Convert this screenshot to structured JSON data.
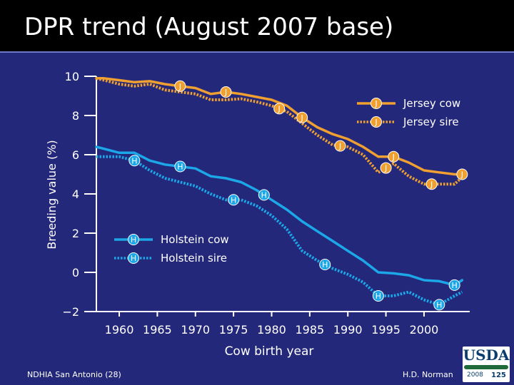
{
  "header": {
    "title": "DPR trend (August 2007 base)"
  },
  "chart_data": {
    "type": "line",
    "title": "DPR trend (August 2007 base)",
    "xlabel": "Cow birth year",
    "ylabel": "Breeding value (%)",
    "xlim": [
      1957,
      2006
    ],
    "ylim": [
      -2,
      10
    ],
    "xticks": [
      1960,
      1965,
      1970,
      1975,
      1980,
      1985,
      1990,
      1995,
      2000
    ],
    "yticks": [
      -2,
      0,
      2,
      4,
      6,
      8,
      10
    ],
    "ytick_labels": [
      "−2",
      "0",
      "2",
      "4",
      "6",
      "8",
      "10"
    ],
    "series": [
      {
        "name": "Jersey cow",
        "marker": "J",
        "style": "solid",
        "color": "#f0a030",
        "x": [
          1957,
          1958,
          1960,
          1962,
          1964,
          1966,
          1968,
          1970,
          1972,
          1974,
          1976,
          1978,
          1980,
          1982,
          1984,
          1986,
          1988,
          1990,
          1992,
          1994,
          1996,
          1998,
          2000,
          2002,
          2004,
          2005
        ],
        "y": [
          9.9,
          9.9,
          9.8,
          9.7,
          9.75,
          9.6,
          9.5,
          9.4,
          9.1,
          9.2,
          9.1,
          8.95,
          8.8,
          8.5,
          7.9,
          7.4,
          7.05,
          6.8,
          6.4,
          5.9,
          5.9,
          5.6,
          5.2,
          5.1,
          5.0,
          5.0
        ],
        "marker_x": [
          1968,
          1974,
          1984,
          1996,
          2005
        ]
      },
      {
        "name": "Jersey sire",
        "marker": "J",
        "style": "dotted",
        "color": "#f0a030",
        "x": [
          1957,
          1958,
          1960,
          1962,
          1964,
          1966,
          1968,
          1970,
          1972,
          1974,
          1976,
          1978,
          1980,
          1982,
          1984,
          1986,
          1988,
          1990,
          1992,
          1994,
          1996,
          1998,
          2000,
          2002,
          2004,
          2005
        ],
        "y": [
          9.9,
          9.8,
          9.6,
          9.5,
          9.6,
          9.3,
          9.2,
          9.1,
          8.8,
          8.8,
          8.85,
          8.7,
          8.5,
          8.2,
          7.6,
          7.0,
          6.5,
          6.4,
          6.0,
          5.1,
          5.55,
          4.9,
          4.5,
          4.5,
          4.5,
          4.85
        ],
        "marker_x": [
          1981,
          1989,
          1995,
          2001
        ]
      },
      {
        "name": "Holstein cow",
        "marker": "H",
        "style": "solid",
        "color": "#1ba7e8",
        "x": [
          1957,
          1958,
          1960,
          1962,
          1964,
          1966,
          1968,
          1970,
          1972,
          1974,
          1976,
          1978,
          1980,
          1982,
          1984,
          1986,
          1988,
          1990,
          1992,
          1994,
          1996,
          1998,
          2000,
          2002,
          2004,
          2005
        ],
        "y": [
          6.4,
          6.3,
          6.1,
          6.1,
          5.7,
          5.5,
          5.4,
          5.3,
          4.9,
          4.8,
          4.6,
          4.2,
          3.7,
          3.2,
          2.6,
          2.1,
          1.6,
          1.1,
          0.6,
          0.0,
          -0.05,
          -0.15,
          -0.4,
          -0.45,
          -0.65,
          -0.4
        ],
        "marker_x": [
          1968,
          1979,
          2004
        ]
      },
      {
        "name": "Holstein sire",
        "marker": "H",
        "style": "dotted",
        "color": "#1ba7e8",
        "x": [
          1957,
          1958,
          1960,
          1962,
          1964,
          1966,
          1968,
          1970,
          1972,
          1974,
          1976,
          1978,
          1980,
          1982,
          1984,
          1986,
          1988,
          1990,
          1992,
          1994,
          1996,
          1998,
          2000,
          2002,
          2004,
          2005
        ],
        "y": [
          5.9,
          5.9,
          5.9,
          5.7,
          5.2,
          4.8,
          4.6,
          4.4,
          4.0,
          3.7,
          3.7,
          3.4,
          2.9,
          2.2,
          1.1,
          0.6,
          0.2,
          -0.1,
          -0.5,
          -1.2,
          -1.2,
          -1.0,
          -1.4,
          -1.65,
          -1.2,
          -1.0
        ],
        "marker_x": [
          1962,
          1975,
          1987,
          1994,
          2002
        ]
      }
    ],
    "legend": [
      {
        "label": "Jersey cow",
        "marker": "J",
        "style": "solid",
        "position": "top-right"
      },
      {
        "label": "Jersey sire",
        "marker": "J",
        "style": "dotted",
        "position": "top-right"
      },
      {
        "label": "Holstein cow",
        "marker": "H",
        "style": "solid",
        "position": "center"
      },
      {
        "label": "Holstein sire",
        "marker": "H",
        "style": "dotted",
        "position": "center"
      }
    ]
  },
  "footer": {
    "left": "NDHIA San Antonio (28)",
    "right": "H.D. Norman",
    "logo_text": "USDA",
    "logo_year": "2008",
    "logo_badge": "125"
  }
}
